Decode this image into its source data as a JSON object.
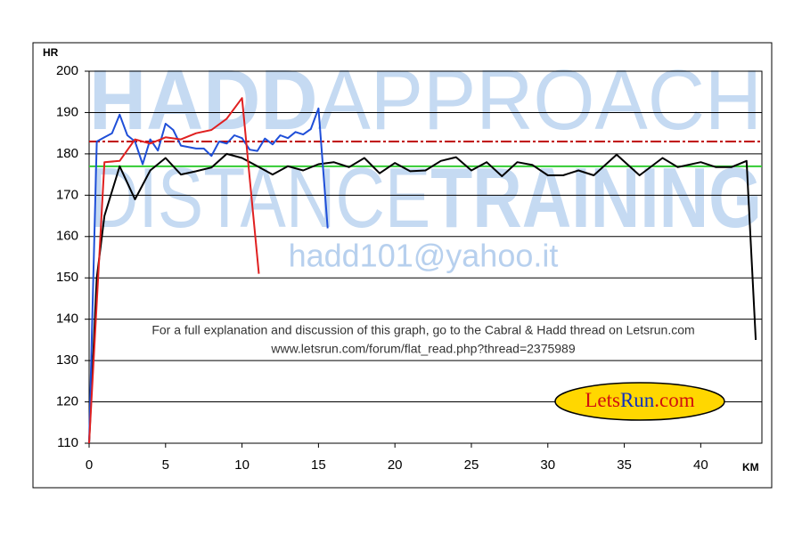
{
  "chart_data": {
    "type": "line",
    "y_label": "HR",
    "x_label": "KM",
    "xlim": [
      0,
      44
    ],
    "ylim": [
      110,
      200
    ],
    "xticks": [
      0,
      5,
      10,
      15,
      20,
      25,
      30,
      35,
      40
    ],
    "yticks": [
      110,
      120,
      130,
      140,
      150,
      160,
      170,
      180,
      190,
      200
    ],
    "grid": true,
    "reference_lines": [
      {
        "value": 183,
        "color": "#c00000",
        "style": "dashdot"
      },
      {
        "value": 177,
        "color": "#33cc33",
        "style": "solid"
      }
    ],
    "series": [
      {
        "color": "#000000",
        "x": [
          0,
          0.5,
          1,
          2,
          3,
          4,
          5,
          6,
          7,
          8,
          9,
          10,
          11,
          12,
          13,
          14,
          15,
          16,
          17,
          18,
          19,
          20,
          21,
          22,
          23,
          24,
          25,
          26,
          27,
          28,
          29,
          30,
          31,
          32,
          33,
          34.5,
          36,
          37.5,
          38.5,
          40,
          41,
          42,
          43,
          43.6
        ],
        "values": [
          110,
          150,
          165,
          177,
          169,
          176,
          179,
          175,
          175.8,
          176.7,
          180,
          179,
          177,
          175,
          177,
          176,
          177.5,
          178,
          176.8,
          179,
          175.3,
          177.8,
          175.8,
          176,
          178.3,
          179.2,
          176,
          178,
          174.6,
          178,
          177.3,
          174.8,
          174.8,
          176,
          174.8,
          179.8,
          174.8,
          179,
          176.8,
          178,
          176.8,
          176.8,
          178.3,
          135
        ]
      },
      {
        "color": "#1f4fd8",
        "x": [
          0,
          0.5,
          1,
          1.5,
          2,
          2.5,
          3,
          3.5,
          4,
          4.5,
          5,
          5.5,
          6,
          7,
          7.5,
          8,
          8.5,
          9,
          9.5,
          10,
          10.5,
          11,
          11.5,
          12,
          12.5,
          13,
          13.5,
          14,
          14.5,
          15,
          15.6
        ],
        "values": [
          110,
          183,
          184,
          185,
          189.5,
          184.5,
          183,
          177.5,
          183.5,
          180.8,
          187.3,
          185.8,
          182,
          181.3,
          181.3,
          179.5,
          183,
          182.5,
          184.5,
          183.8,
          181,
          180.7,
          183.7,
          182.3,
          184.5,
          183.8,
          185.3,
          184.7,
          186,
          191,
          162
        ]
      },
      {
        "color": "#e02020",
        "x": [
          0,
          1,
          2,
          3,
          4,
          5,
          6,
          7,
          8,
          9,
          10,
          11.1
        ],
        "values": [
          110,
          178,
          178.3,
          183.5,
          182.5,
          184,
          183.5,
          185,
          185.8,
          188.5,
          193.5,
          151
        ]
      }
    ],
    "watermark": {
      "line1": [
        "HADD",
        "APPROACH"
      ],
      "line2": [
        "DISTANCE",
        "TRAINING"
      ],
      "email": "hadd101@yahoo.it"
    },
    "annotation": [
      "For a full explanation and discussion of this graph, go to the Cabral & Hadd thread on Letsrun.com",
      "www.letsrun.com/forum/flat_read.php?thread=2375989"
    ],
    "logo": [
      "Lets",
      "Run",
      ".com"
    ]
  }
}
